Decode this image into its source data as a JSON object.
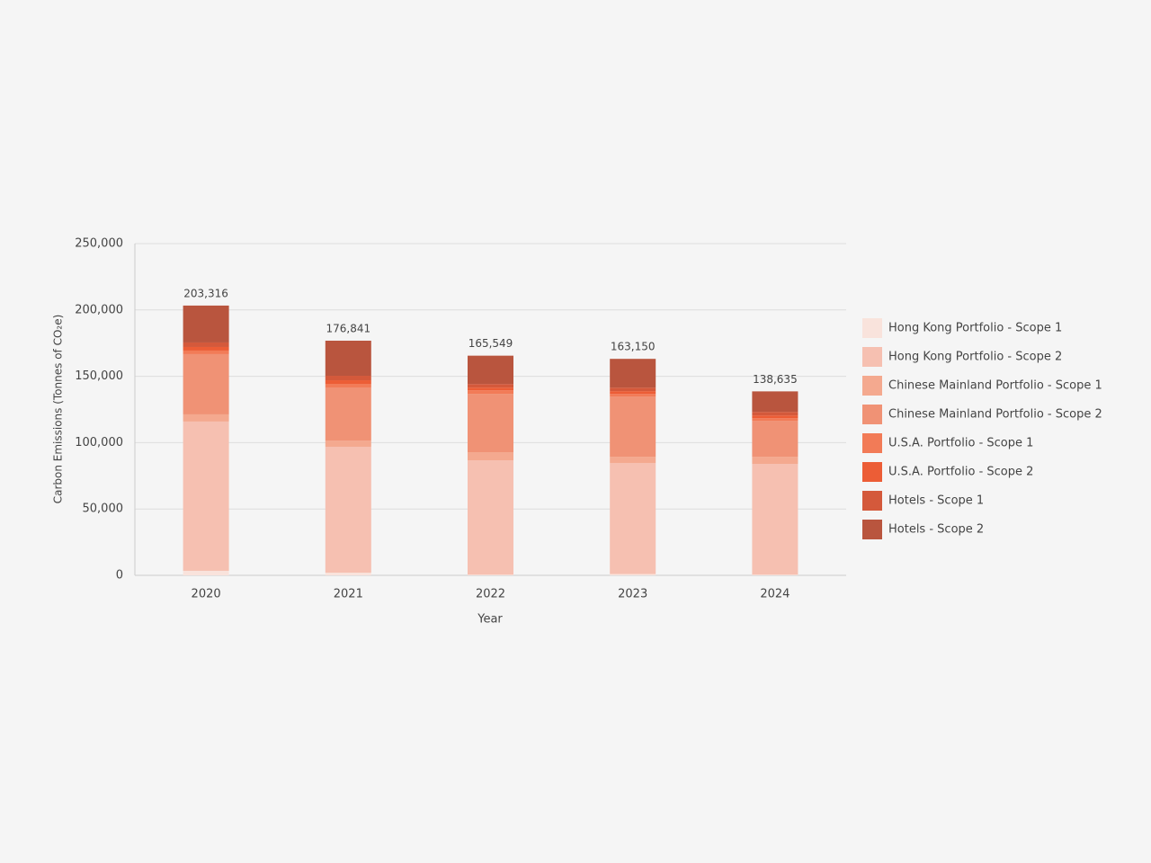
{
  "chart_data": {
    "type": "stacked_bar",
    "x_label": "Year",
    "y_label": "Carbon Emissions (Tonnes of CO₂e)",
    "categories": [
      "2020",
      "2021",
      "2022",
      "2023",
      "2024"
    ],
    "series": [
      {
        "name": "Hong Kong Portfolio - Scope 1",
        "color": "#f9e3dc",
        "values": [
          3400,
          2000,
          500,
          1000,
          500
        ]
      },
      {
        "name": "Hong Kong Portfolio - Scope 2",
        "color": "#f6c0b1",
        "values": [
          112500,
          94900,
          86200,
          83700,
          83500
        ]
      },
      {
        "name": "Chinese Mainland Portfolio - Scope 1",
        "color": "#f4a98f",
        "values": [
          5400,
          4700,
          6100,
          4700,
          5400
        ]
      },
      {
        "name": "Chinese Mainland Portfolio - Scope 2",
        "color": "#f09275",
        "values": [
          45400,
          40000,
          44000,
          45400,
          27100
        ]
      },
      {
        "name": "U.S.A. Portfolio - Scope 1",
        "color": "#f27b57",
        "values": [
          2700,
          2700,
          2700,
          2000,
          2000
        ]
      },
      {
        "name": "U.S.A. Portfolio - Scope 2",
        "color": "#ec5d36",
        "values": [
          2700,
          2700,
          2000,
          2000,
          2000
        ]
      },
      {
        "name": "Hotels - Scope 1",
        "color": "#d4593b",
        "values": [
          3400,
          3400,
          2700,
          2700,
          2700
        ]
      },
      {
        "name": "Hotels - Scope 2",
        "color": "#b9553e",
        "values": [
          27816,
          26441,
          21349,
          21650,
          15435
        ]
      }
    ],
    "totals": [
      203316,
      176841,
      165549,
      163150,
      138635
    ],
    "total_labels": [
      "203,316",
      "176,841",
      "165,549",
      "163,150",
      "138,635"
    ],
    "ylim": [
      0,
      250000
    ],
    "yticks": [
      0,
      {
        "value": 50000,
        "label": "50,000"
      },
      {
        "value": 100000,
        "label": "100,000"
      },
      {
        "value": 150000,
        "label": "150,000"
      },
      {
        "value": 200000,
        "label": "200,000"
      },
      {
        "value": 250000,
        "label": "250,000"
      }
    ],
    "grid": true
  }
}
